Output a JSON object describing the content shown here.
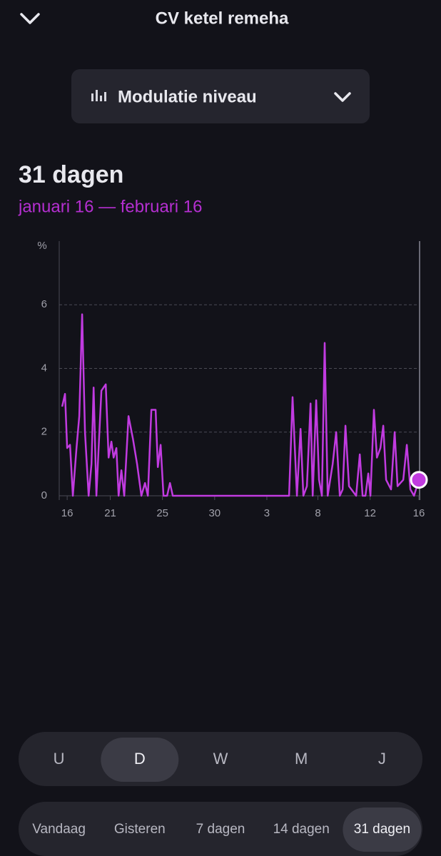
{
  "header": {
    "title": "CV ketel remeha"
  },
  "metric_selector": {
    "label": "Modulatie niveau"
  },
  "summary": {
    "title": "31 dagen",
    "range": "januari 16 — februari 16"
  },
  "chart_data": {
    "type": "line",
    "y_unit": "%",
    "x": [
      -0.44,
      -0.19,
      0,
      0.25,
      0.5,
      0.82,
      1.07,
      1.32,
      1.57,
      1.89,
      2.14,
      2.33,
      2.58,
      2.77,
      3.02,
      3.4,
      3.65,
      3.9,
      4.09,
      4.34,
      4.53,
      4.78,
      5.03,
      5.41,
      5.79,
      6.16,
      6.54,
      6.86,
      7.11,
      7.42,
      7.8,
      7.99,
      8.24,
      8.49,
      8.81,
      9.06,
      9.31,
      19.56,
      19.87,
      20.25,
      20.57,
      20.82,
      21.13,
      21.45,
      21.64,
      21.95,
      22.2,
      22.45,
      22.7,
      22.96,
      23.4,
      23.71,
      24.03,
      24.28,
      24.53,
      24.84,
      25.47,
      25.79,
      26.04,
      26.29,
      26.54,
      26.73,
      27.04,
      27.3,
      27.61,
      27.86,
      28.11,
      28.55,
      28.87,
      29.12,
      29.62,
      29.94,
      30.25,
      30.57,
      31
    ],
    "series": [
      {
        "color": "#c13be0",
        "values": [
          2.8,
          3.2,
          1.5,
          1.6,
          0,
          1.5,
          2.5,
          5.7,
          2,
          0,
          1,
          3.4,
          0,
          1.5,
          3.3,
          3.5,
          1.2,
          1.7,
          1.2,
          1.5,
          0,
          0.8,
          0,
          2.5,
          1.8,
          1,
          0,
          0.4,
          0,
          2.7,
          2.7,
          0.9,
          1.6,
          0,
          0,
          0.4,
          0,
          0,
          3.1,
          0,
          2.1,
          0,
          0.3,
          2.9,
          0,
          3,
          0.5,
          0,
          4.8,
          0,
          1,
          2,
          0,
          0.2,
          2.2,
          0.3,
          0,
          1.3,
          0,
          0,
          0.7,
          0,
          2.7,
          1.2,
          1.5,
          2.2,
          0.5,
          0.2,
          2,
          0.3,
          0.5,
          1.6,
          0.2,
          0,
          0.5
        ]
      }
    ],
    "xlim": [
      -0.7,
      31
    ],
    "ylim": [
      0,
      8
    ],
    "xticks": [
      {
        "value": 0,
        "label": "16"
      },
      {
        "value": 3.8,
        "label": "21"
      },
      {
        "value": 8.4,
        "label": "25"
      },
      {
        "value": 13,
        "label": "30"
      },
      {
        "value": 17.6,
        "label": "3"
      },
      {
        "value": 22.1,
        "label": "8"
      },
      {
        "value": 26.7,
        "label": "12"
      },
      {
        "value": 31,
        "label": "16"
      }
    ],
    "yticks": [
      0,
      2,
      4,
      6
    ],
    "grid": true
  },
  "resolution_tabs": {
    "options": [
      "U",
      "D",
      "W",
      "M",
      "J"
    ],
    "selected": 1
  },
  "period_tabs": {
    "options": [
      "Vandaag",
      "Gisteren",
      "7 dagen",
      "14 dagen",
      "31 dagen"
    ],
    "selected": 4
  }
}
